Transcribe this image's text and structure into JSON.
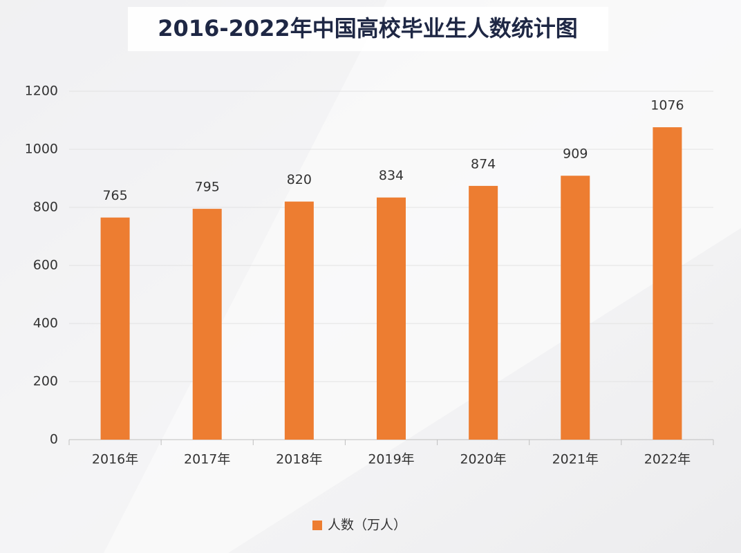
{
  "chart_data": {
    "type": "bar",
    "title": "2016-2022年中国高校毕业生人数统计图",
    "categories": [
      "2016年",
      "2017年",
      "2018年",
      "2019年",
      "2020年",
      "2021年",
      "2022年"
    ],
    "series": [
      {
        "name": "人数（万人）",
        "color": "#ed7d31",
        "values": [
          765,
          795,
          820,
          834,
          874,
          909,
          1076
        ]
      }
    ],
    "ylim": [
      0,
      1200
    ],
    "yticks": [
      0,
      200,
      400,
      600,
      800,
      1000,
      1200
    ],
    "grid": true,
    "legend": "bottom"
  }
}
